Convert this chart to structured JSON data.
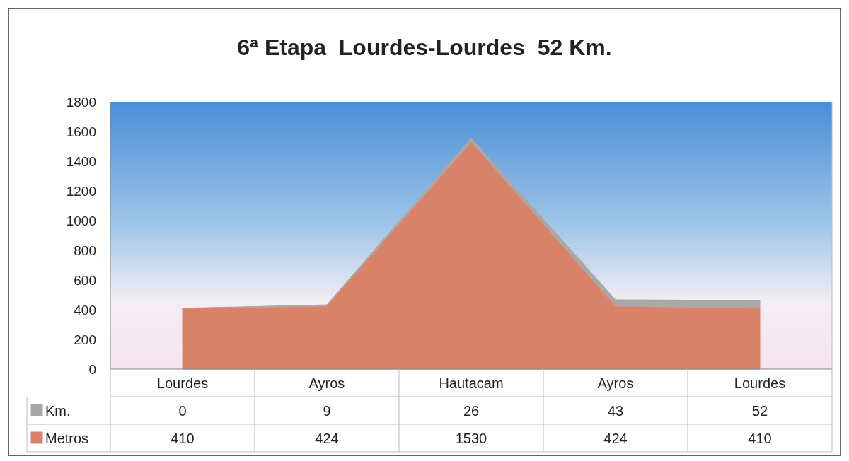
{
  "chart_data": {
    "type": "area",
    "title": "6ª Etapa  Lourdes-Lourdes  52 Km.",
    "categories": [
      "Lourdes",
      "Ayros",
      "Hautacam",
      "Ayros",
      "Lourdes"
    ],
    "stacked": true,
    "ylim": [
      0,
      1800
    ],
    "yticks": [
      0,
      200,
      400,
      600,
      800,
      1000,
      1200,
      1400,
      1600,
      1800
    ],
    "grid": false,
    "legend": "bottom left",
    "data_labels": true,
    "series": [
      {
        "name": "Metros",
        "color": "#d9826a",
        "values": [
          410,
          424,
          1530,
          424,
          410
        ]
      },
      {
        "name": "Km.",
        "color": "#a8a8a8",
        "values": [
          0,
          9,
          26,
          43,
          52
        ]
      }
    ]
  }
}
